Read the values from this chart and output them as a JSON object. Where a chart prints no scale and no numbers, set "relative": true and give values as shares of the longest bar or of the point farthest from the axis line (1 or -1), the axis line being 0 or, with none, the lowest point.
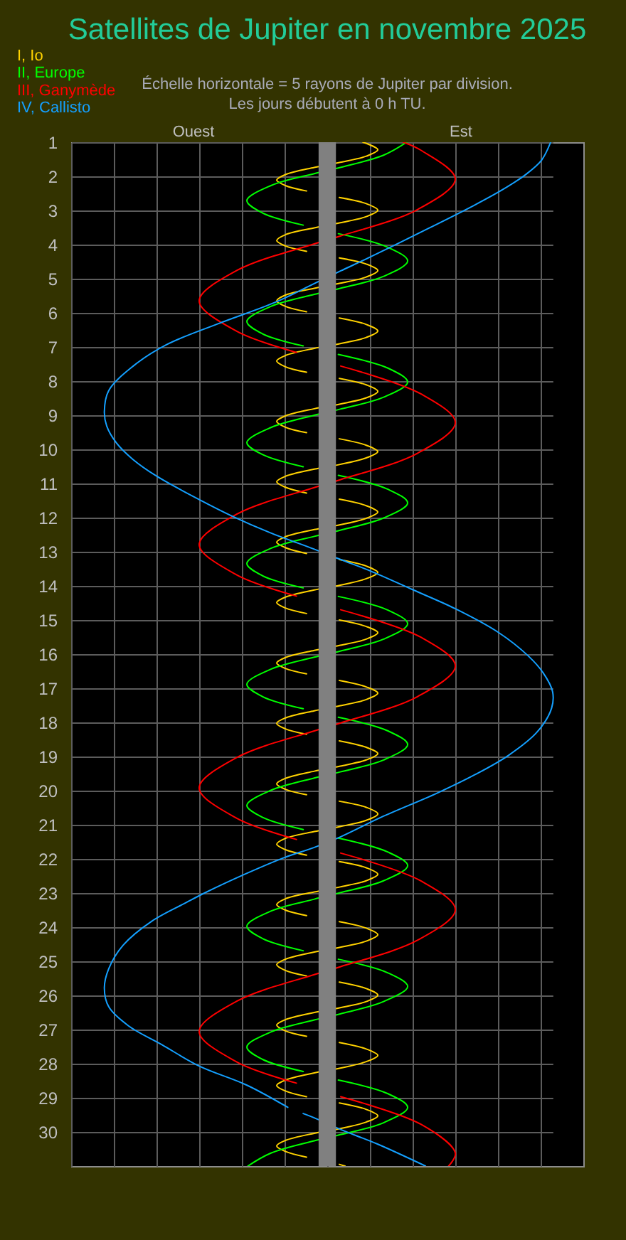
{
  "chart_data": {
    "type": "line",
    "orientation": "horizontal",
    "relative": true,
    "title": "Satellites de Jupiter en novembre 2025",
    "subtitle": "Échelle horizontale = 5 rayons de Jupiter par division.",
    "annotations": [
      "Les jours débutent à 0 h TU.",
      "Ouest",
      "Est"
    ],
    "ylim": [
      31,
      1
    ],
    "yticks": [
      1,
      2,
      3,
      4,
      5,
      6,
      7,
      8,
      9,
      10,
      11,
      12,
      13,
      14,
      15,
      16,
      17,
      18,
      19,
      20,
      21,
      22,
      23,
      24,
      25,
      26,
      27,
      28,
      29,
      30
    ],
    "grid": true,
    "legend": "top left",
    "bands": [
      {
        "axis": "x",
        "from": 0.514,
        "to": 0.55,
        "color": "#808080"
      }
    ],
    "series": [
      {
        "name": "I, Io",
        "color": "#ffd200",
        "values": [
          0.606,
          0.637,
          0.613,
          0.559,
          0.505,
          0.445,
          0.427,
          0.445,
          0.489,
          null,
          0.557,
          0.613,
          0.637,
          0.613,
          0.559,
          0.505,
          0.445,
          0.427,
          0.445,
          0.489,
          null,
          0.557,
          0.613,
          0.637,
          0.613,
          0.559,
          0.505,
          0.445,
          0.427,
          0.445,
          0.489,
          null,
          0.557,
          0.613,
          0.637,
          0.613,
          0.559,
          0.505,
          0.445,
          0.427,
          0.445,
          0.489,
          null,
          0.557,
          0.613,
          0.637,
          0.613,
          0.559,
          0.505,
          0.445,
          0.427,
          0.445,
          0.489,
          null,
          0.557,
          0.613,
          0.637,
          0.613,
          0.559,
          0.505,
          0.445,
          0.427,
          0.445,
          0.489,
          null,
          0.557,
          0.613,
          0.637,
          0.613,
          0.559,
          0.505,
          0.445,
          0.427,
          0.445,
          0.489,
          null,
          0.557,
          0.613,
          0.637,
          0.613,
          0.559,
          0.505,
          0.445,
          0.427,
          0.445,
          0.489,
          null,
          0.557,
          0.613,
          0.637,
          0.613,
          0.559,
          0.505,
          0.445,
          0.427,
          0.445,
          0.489,
          null,
          0.557,
          0.613,
          0.637,
          0.613,
          0.559,
          0.505,
          0.445,
          0.427,
          0.445,
          0.489,
          null,
          0.557,
          0.613,
          0.637,
          0.613,
          0.559,
          0.505,
          0.445,
          0.427,
          0.445,
          0.489,
          null,
          0.557,
          0.613,
          0.637,
          0.613,
          0.559,
          0.505,
          0.445,
          0.427,
          0.445,
          0.489,
          null,
          0.557,
          0.613,
          0.637,
          0.613,
          0.559,
          0.505,
          0.445,
          0.427,
          0.445,
          0.489,
          null,
          0.557,
          0.613,
          0.637,
          0.613,
          0.559,
          0.505,
          0.445,
          0.427,
          0.445,
          0.489,
          null,
          0.557,
          0.613,
          0.637,
          0.613,
          0.559,
          0.505,
          0.445,
          0.427,
          0.445,
          0.489,
          null,
          0.557,
          0.613,
          0.637,
          0.613,
          0.559,
          0.505,
          0.445,
          0.427,
          0.445,
          0.489,
          null,
          0.557,
          0.613,
          0.637,
          0.613,
          0.559,
          0.505,
          0.445,
          0.427,
          0.445,
          0.489,
          null,
          0.557,
          0.569
        ],
        "x": [
          1.0,
          1.22,
          1.41,
          1.59,
          1.74,
          1.95,
          2.11,
          2.27,
          2.43,
          null,
          2.62,
          2.8,
          2.99,
          3.18,
          3.36,
          3.51,
          3.71,
          3.88,
          4.04,
          4.2,
          null,
          4.39,
          4.57,
          4.76,
          4.95,
          5.13,
          5.28,
          5.48,
          5.65,
          5.81,
          5.97,
          null,
          6.15,
          6.34,
          6.53,
          6.72,
          6.9,
          7.04,
          7.25,
          7.41,
          7.58,
          7.74,
          null,
          7.92,
          8.11,
          8.3,
          8.49,
          8.67,
          8.81,
          9.02,
          9.18,
          9.35,
          9.51,
          null,
          9.69,
          9.88,
          10.07,
          10.25,
          10.44,
          10.58,
          10.79,
          10.95,
          11.11,
          11.28,
          null,
          11.46,
          11.65,
          11.84,
          12.02,
          12.21,
          12.35,
          12.56,
          12.72,
          12.88,
          13.05,
          null,
          13.23,
          13.42,
          13.61,
          13.79,
          13.98,
          14.12,
          14.33,
          14.49,
          14.65,
          14.81,
          null,
          15.0,
          15.19,
          15.37,
          15.56,
          15.74,
          15.89,
          16.1,
          16.26,
          16.42,
          16.58,
          null,
          16.77,
          16.96,
          17.14,
          17.33,
          17.51,
          17.66,
          17.87,
          18.03,
          18.19,
          18.35,
          null,
          18.54,
          18.73,
          18.91,
          19.1,
          19.28,
          19.43,
          19.64,
          19.8,
          19.96,
          20.12,
          null,
          20.31,
          20.49,
          20.68,
          20.87,
          21.05,
          21.2,
          21.4,
          21.57,
          21.73,
          21.89,
          null,
          22.08,
          22.26,
          22.45,
          22.64,
          22.82,
          22.97,
          23.17,
          23.34,
          23.5,
          23.66,
          null,
          23.84,
          24.03,
          24.22,
          24.41,
          24.59,
          24.73,
          24.94,
          25.1,
          25.27,
          25.43,
          null,
          25.61,
          25.8,
          25.99,
          26.18,
          26.36,
          26.5,
          26.71,
          26.87,
          27.04,
          27.2,
          null,
          27.38,
          27.57,
          27.76,
          27.94,
          28.13,
          28.27,
          28.48,
          28.64,
          28.8,
          28.97,
          null,
          29.15,
          29.34,
          29.53,
          29.71,
          29.9,
          30.04,
          30.25,
          30.41,
          30.57,
          30.74,
          null,
          30.95,
          31.0
        ]
      },
      {
        "name": "II, Europe",
        "color": "#00ff00",
        "values": [
          0.697,
          0.649,
          0.559,
          0.505,
          0.415,
          0.365,
          0.397,
          0.482,
          null,
          0.555,
          0.658,
          0.699,
          0.649,
          0.559,
          0.505,
          0.415,
          0.365,
          0.397,
          0.482,
          null,
          0.555,
          0.658,
          0.699,
          0.649,
          0.559,
          0.505,
          0.415,
          0.365,
          0.397,
          0.482,
          null,
          0.555,
          0.658,
          0.699,
          0.649,
          0.559,
          0.505,
          0.415,
          0.365,
          0.397,
          0.482,
          null,
          0.555,
          0.658,
          0.699,
          0.649,
          0.559,
          0.505,
          0.415,
          0.365,
          0.397,
          0.482,
          null,
          0.555,
          0.658,
          0.699,
          0.649,
          0.559,
          0.505,
          0.415,
          0.365,
          0.397,
          0.482,
          null,
          0.555,
          0.658,
          0.699,
          0.649,
          0.559,
          0.505,
          0.415,
          0.365,
          0.397,
          0.482,
          null,
          0.555,
          0.658,
          0.699,
          0.649,
          0.559,
          0.505,
          0.415,
          0.365,
          0.397,
          0.482,
          null,
          0.555,
          0.658,
          0.699,
          0.649,
          0.559,
          0.505,
          0.415,
          0.367
        ],
        "x": [
          1.0,
          1.38,
          1.74,
          1.92,
          2.27,
          2.71,
          3.07,
          3.43,
          null,
          3.68,
          4.08,
          4.48,
          4.93,
          5.28,
          5.46,
          5.81,
          6.25,
          6.61,
          6.97,
          null,
          7.22,
          7.62,
          8.03,
          8.47,
          8.82,
          9.0,
          9.36,
          9.8,
          10.15,
          10.51,
          null,
          10.76,
          11.17,
          11.57,
          12.01,
          12.37,
          12.55,
          12.9,
          13.34,
          13.7,
          14.06,
          null,
          14.31,
          14.71,
          15.11,
          15.56,
          15.91,
          16.09,
          16.44,
          16.88,
          17.24,
          17.6,
          null,
          17.85,
          18.25,
          18.65,
          19.1,
          19.45,
          19.63,
          19.99,
          20.43,
          20.78,
          21.14,
          null,
          21.39,
          21.8,
          22.2,
          22.64,
          22.99,
          23.18,
          23.53,
          23.97,
          24.33,
          24.69,
          null,
          24.94,
          25.34,
          25.74,
          26.18,
          26.54,
          26.72,
          27.07,
          27.51,
          27.87,
          28.23,
          null,
          28.48,
          28.88,
          29.28,
          29.73,
          30.08,
          30.26,
          30.62,
          31.0
        ]
      },
      {
        "name": "III, Ganymède",
        "color": "#ff0000",
        "values": [
          0.69,
          0.727,
          0.798,
          0.72,
          0.559,
          0.505,
          0.344,
          0.266,
          0.344,
          0.468,
          null,
          0.56,
          0.727,
          0.798,
          0.72,
          0.559,
          0.505,
          0.344,
          0.266,
          0.344,
          0.468,
          null,
          0.56,
          0.727,
          0.798,
          0.72,
          0.559,
          0.505,
          0.344,
          0.266,
          0.344,
          0.468,
          null,
          0.56,
          0.727,
          0.798,
          0.72,
          0.559,
          0.505,
          0.344,
          0.266,
          0.344,
          0.468,
          null,
          0.56,
          0.727,
          0.798,
          0.784
        ],
        "x": [
          1.0,
          1.24,
          2.08,
          2.97,
          3.75,
          3.98,
          4.76,
          5.65,
          6.54,
          7.16,
          null,
          7.56,
          8.38,
          9.22,
          10.11,
          10.89,
          11.12,
          11.9,
          12.79,
          13.68,
          14.3,
          null,
          14.7,
          15.51,
          16.35,
          17.24,
          18.02,
          18.25,
          19.03,
          19.92,
          20.81,
          21.43,
          null,
          21.83,
          22.65,
          23.49,
          24.38,
          25.16,
          25.39,
          26.17,
          27.06,
          27.95,
          28.57,
          null,
          28.97,
          29.78,
          30.62,
          31.0
        ]
      },
      {
        "name": "IV, Callisto",
        "color": "#14a0ff",
        "values": [
          0.996,
          0.977,
          0.945,
          0.895,
          0.837,
          0.72,
          0.61,
          0.56,
          0.504,
          0.424,
          0.305,
          0.197,
          0.128,
          0.078,
          0.069,
          0.074,
          0.094,
          0.128,
          0.177,
          0.266,
          0.335,
          0.413,
          0.504,
          0.56,
          0.621,
          0.709,
          0.798,
          0.887,
          0.95,
          0.98,
          1,
          0.998,
          0.968,
          0.908,
          0.839,
          0.759,
          0.644,
          0.56,
          0.504,
          0.443,
          0.362,
          0.277,
          0.239,
          0.167,
          0.108,
          0.078,
          0.069,
          0.078,
          0.119,
          0.188,
          0.266,
          0.365,
          0.45,
          null,
          0.482,
          0.504,
          0.56,
          0.637,
          0.736
        ],
        "x": [
          1.0,
          1.53,
          1.94,
          2.4,
          2.85,
          3.68,
          4.44,
          4.77,
          5.15,
          5.69,
          6.32,
          6.94,
          7.57,
          8.28,
          8.9,
          9.32,
          9.81,
          10.29,
          10.78,
          11.47,
          11.96,
          12.44,
          12.92,
          13.23,
          13.56,
          14.11,
          14.67,
          15.36,
          16.06,
          16.54,
          17.1,
          17.58,
          18.28,
          18.97,
          19.53,
          20.08,
          20.78,
          21.35,
          21.67,
          21.96,
          22.44,
          23.0,
          23.28,
          23.83,
          24.53,
          25.22,
          25.78,
          26.33,
          26.89,
          27.44,
          28.07,
          28.63,
          29.28,
          null,
          29.46,
          29.58,
          29.93,
          30.36,
          31.0
        ]
      }
    ]
  }
}
